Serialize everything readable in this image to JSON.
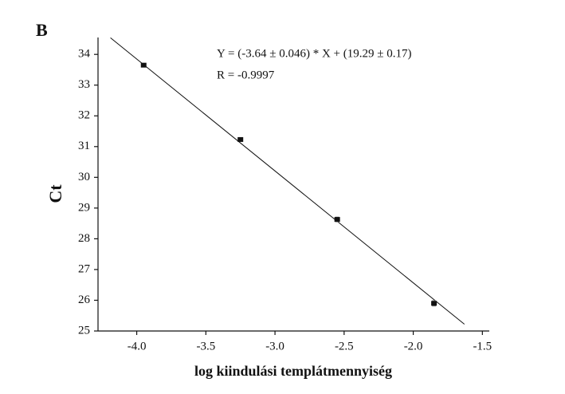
{
  "chart_data": {
    "type": "scatter",
    "panel_label": "B",
    "x_label": "log kiindulási templátmennyiség",
    "y_label": "Ct",
    "annotations": [
      "Y = (-3.64 ± 0.046) * X + (19.29 ± 0.17)",
      "R = -0.9997"
    ],
    "x": [
      -3.95,
      -3.25,
      -2.55,
      -1.85
    ],
    "values": [
      33.65,
      31.23,
      28.63,
      25.9
    ],
    "errors": [
      0.05,
      0.06,
      0.09,
      0.1
    ],
    "color": "#111111",
    "fit": {
      "x": [
        -4.19,
        -1.63
      ],
      "y": [
        34.54,
        25.22
      ]
    },
    "xlim": [
      -4.28,
      -1.45
    ],
    "xticks": [
      {
        "value": -4.0,
        "label": "-4.0"
      },
      -3.5,
      {
        "value": -3.0,
        "label": "-3.0"
      },
      -2.5,
      {
        "value": -2.0,
        "label": "-2.0"
      },
      -1.5
    ],
    "ylim": [
      25,
      34.55
    ],
    "yticks": [
      25,
      26,
      27,
      28,
      29,
      30,
      31,
      32,
      33,
      34
    ]
  }
}
